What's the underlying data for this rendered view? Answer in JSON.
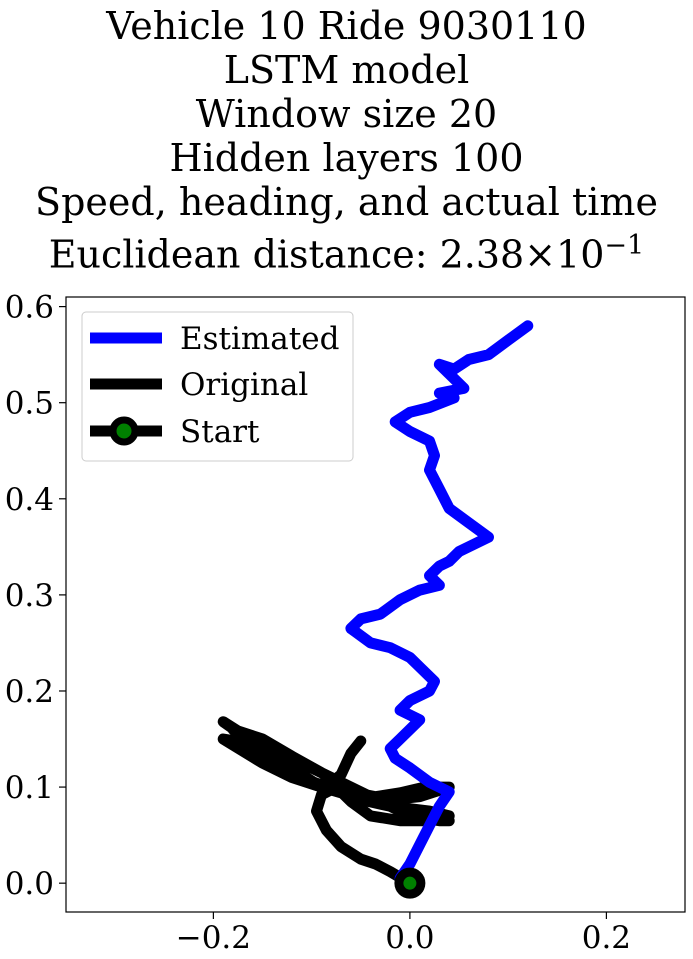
{
  "chart_data": {
    "type": "line",
    "title_lines": [
      "Vehicle 10 Ride 9030110",
      "LSTM model",
      "Window size 20",
      "Hidden layers 100",
      "Speed, heading, and actual time"
    ],
    "title_metric_label": "Euclidean distance: ",
    "title_metric_mantissa": "2.38",
    "title_metric_times": "×10",
    "title_metric_exponent": "−1",
    "xlabel": "",
    "ylabel": "",
    "xlim": [
      -0.35,
      0.28
    ],
    "ylim": [
      -0.03,
      0.61
    ],
    "xticks": [
      -0.2,
      0.0,
      0.2
    ],
    "xtick_labels": [
      "−0.2",
      "0.0",
      "0.2"
    ],
    "yticks": [
      0.0,
      0.1,
      0.2,
      0.3,
      0.4,
      0.5,
      0.6
    ],
    "ytick_labels": [
      "0.0",
      "0.1",
      "0.2",
      "0.3",
      "0.4",
      "0.5",
      "0.6"
    ],
    "grid": false,
    "legend_position": "top-left",
    "series": [
      {
        "name": "Estimated",
        "color": "#0000ff",
        "x": [
          0.12,
          0.1,
          0.08,
          0.06,
          0.045,
          0.03,
          0.055,
          0.03,
          0.045,
          0.02,
          0.0,
          -0.015,
          0.0,
          0.02,
          0.025,
          0.02,
          0.03,
          0.04,
          0.06,
          0.08,
          0.05,
          0.04,
          0.03,
          0.02,
          0.03,
          0.01,
          -0.01,
          -0.03,
          -0.05,
          -0.06,
          -0.04,
          -0.02,
          0.0,
          0.01,
          0.025,
          0.02,
          0.0,
          -0.01,
          0.01,
          -0.01,
          -0.02,
          -0.015,
          0.0,
          0.02,
          0.04,
          0.03,
          0.02,
          0.01,
          0.0,
          -0.01
        ],
        "y": [
          0.58,
          0.565,
          0.55,
          0.545,
          0.535,
          0.54,
          0.515,
          0.51,
          0.505,
          0.495,
          0.49,
          0.48,
          0.47,
          0.46,
          0.445,
          0.43,
          0.41,
          0.39,
          0.375,
          0.36,
          0.345,
          0.335,
          0.33,
          0.32,
          0.31,
          0.305,
          0.295,
          0.28,
          0.275,
          0.265,
          0.25,
          0.245,
          0.235,
          0.225,
          0.21,
          0.2,
          0.19,
          0.18,
          0.17,
          0.15,
          0.14,
          0.13,
          0.12,
          0.105,
          0.095,
          0.08,
          0.06,
          0.04,
          0.02,
          0.005
        ]
      },
      {
        "name": "Original",
        "color": "#000000",
        "x": [
          0.0,
          -0.02,
          -0.035,
          -0.05,
          -0.07,
          -0.085,
          -0.095,
          -0.09,
          -0.075,
          -0.06,
          -0.04,
          -0.01,
          0.02,
          0.04,
          0.02,
          -0.02,
          -0.05,
          -0.07,
          -0.09,
          -0.12,
          -0.15,
          -0.19,
          -0.16,
          -0.13,
          -0.1,
          -0.07,
          -0.04,
          0.0,
          0.03,
          0.04,
          0.02,
          -0.01,
          -0.03,
          -0.05,
          -0.07,
          -0.1,
          -0.13,
          -0.16,
          -0.18,
          -0.15,
          -0.12,
          -0.09,
          -0.065,
          -0.045,
          -0.02,
          0.01,
          0.04,
          0.015,
          -0.01,
          -0.035,
          -0.06,
          -0.09,
          -0.11,
          -0.135,
          -0.17,
          -0.19,
          -0.165,
          -0.14,
          -0.11,
          -0.085,
          -0.07,
          -0.06,
          -0.05
        ],
        "y": [
          0.0,
          0.012,
          0.02,
          0.025,
          0.038,
          0.055,
          0.075,
          0.092,
          0.1,
          0.085,
          0.07,
          0.065,
          0.065,
          0.07,
          0.075,
          0.08,
          0.087,
          0.094,
          0.1,
          0.11,
          0.125,
          0.15,
          0.145,
          0.135,
          0.12,
          0.105,
          0.09,
          0.07,
          0.065,
          0.065,
          0.068,
          0.075,
          0.085,
          0.095,
          0.098,
          0.105,
          0.12,
          0.14,
          0.16,
          0.15,
          0.132,
          0.115,
          0.1,
          0.092,
          0.087,
          0.09,
          0.1,
          0.1,
          0.094,
          0.09,
          0.094,
          0.1,
          0.113,
          0.13,
          0.155,
          0.168,
          0.15,
          0.13,
          0.11,
          0.1,
          0.113,
          0.135,
          0.148
        ]
      }
    ],
    "start_point": {
      "name": "Start",
      "x": 0.0,
      "y": 0.0,
      "marker_edge": "#000000",
      "marker_face": "#008000"
    }
  }
}
